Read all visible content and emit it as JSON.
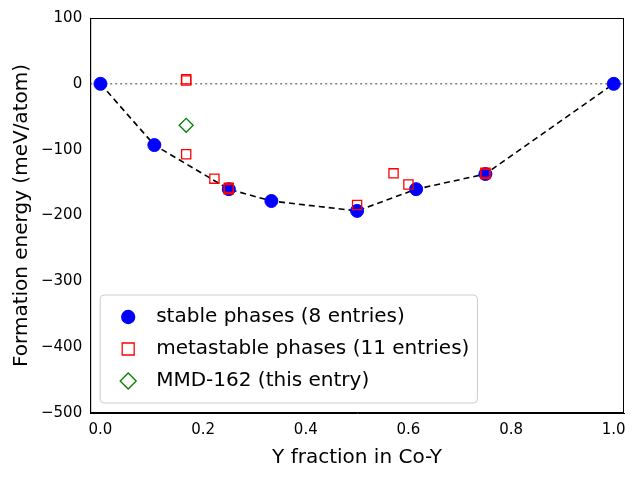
{
  "chart_data": {
    "type": "scatter",
    "x_label": "Y fraction in Co-Y",
    "y_label": "Formation energy (meV/atom)",
    "xlim": [
      -0.02,
      1.02
    ],
    "xticks": [
      {
        "value": 0,
        "label": "0.0"
      },
      {
        "value": 0.2,
        "label": "0.2"
      },
      {
        "value": 0.4,
        "label": "0.4"
      },
      {
        "value": 0.6,
        "label": "0.6"
      },
      {
        "value": 0.8,
        "label": "0.8"
      },
      {
        "value": 1,
        "label": "1.0"
      }
    ],
    "ylim": [
      -500,
      100
    ],
    "yticks": [
      {
        "value": -500,
        "label": "−500"
      },
      {
        "value": -400,
        "label": "−400"
      },
      {
        "value": -300,
        "label": "−300"
      },
      {
        "value": -200,
        "label": "−200"
      },
      {
        "value": -100,
        "label": "−100"
      },
      0,
      100
    ],
    "grid": false,
    "legend": "lower left",
    "reference_line": {
      "y": 0,
      "color": "#808080",
      "line_style": "dotted"
    },
    "series": [
      {
        "name": "stable phases (8 entries)",
        "color": "#0000ff",
        "marker": "circle",
        "line_style": "dashed",
        "line_color": "#000000",
        "x": [
          0,
          0.105,
          0.25,
          0.333,
          0.5,
          0.615,
          0.75,
          1
        ],
        "values": [
          0,
          -93,
          -160,
          -178,
          -193,
          -160,
          -137,
          0
        ]
      },
      {
        "name": "metastable phases (11 entries)",
        "color": "#ff0000",
        "marker": "open square",
        "x": [
          0.167,
          0.167,
          0.167,
          0.222,
          0.25,
          0.25,
          0.5,
          0.571,
          0.6,
          0.75,
          0.75
        ],
        "values": [
          5,
          7,
          -107,
          -144,
          -160,
          -158,
          -184,
          -136,
          -153,
          -137,
          -135
        ]
      },
      {
        "name": "MMD-162 (this entry)",
        "color": "#008000",
        "marker": "open diamond",
        "x": [
          0.167
        ],
        "values": [
          -63
        ]
      }
    ]
  }
}
